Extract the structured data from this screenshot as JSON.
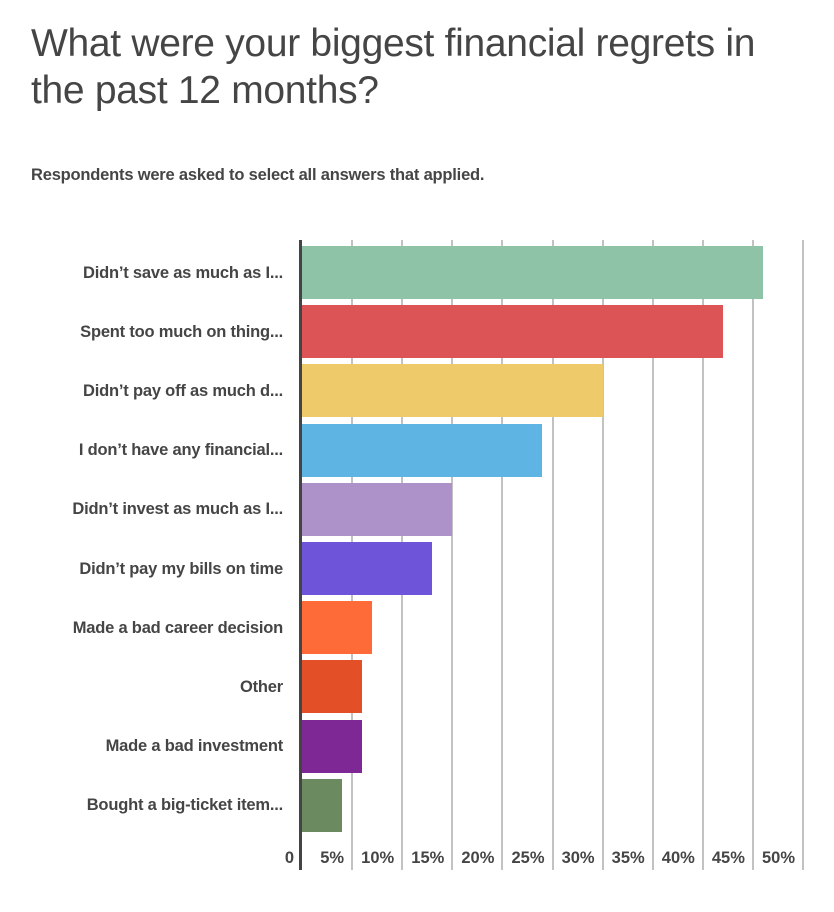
{
  "title": "What were your biggest financial regrets in the past 12 months?",
  "subtitle": "Respondents were asked to select all answers that applied.",
  "x_ticks": [
    "0",
    "5%",
    "10%",
    "15%",
    "20%",
    "25%",
    "30%",
    "35%",
    "40%",
    "45%",
    "50%"
  ],
  "categories": [
    {
      "label": "Didn’t save as much as I...",
      "value": 46,
      "color": "#8FC3A8"
    },
    {
      "label": "Spent too much on thing...",
      "value": 42,
      "color": "#DD5456"
    },
    {
      "label": "Didn’t pay off as much d...",
      "value": 30,
      "color": "#EFCA6A"
    },
    {
      "label": "I don’t have any financial...",
      "value": 24,
      "color": "#5EB5E3"
    },
    {
      "label": "Didn’t invest as much as I...",
      "value": 15,
      "color": "#AC92C8"
    },
    {
      "label": "Didn’t pay my bills on time",
      "value": 13,
      "color": "#6E54D8"
    },
    {
      "label": "Made a bad career decision",
      "value": 7,
      "color": "#FF6B38"
    },
    {
      "label": "Other",
      "value": 6,
      "color": "#E34F26"
    },
    {
      "label": "Made a bad investment",
      "value": 6,
      "color": "#7E2896"
    },
    {
      "label": "Bought a big-ticket item...",
      "value": 4,
      "color": "#6B8A5F"
    }
  ],
  "chart_data": {
    "type": "bar",
    "orientation": "horizontal",
    "title": "What were your biggest financial regrets in the past 12 months?",
    "subtitle": "Respondents were asked to select all answers that applied.",
    "categories": [
      "Didn’t save as much as I...",
      "Spent too much on thing...",
      "Didn’t pay off as much d...",
      "I don’t have any financial...",
      "Didn’t invest as much as I...",
      "Didn’t pay my bills on time",
      "Made a bad career decision",
      "Other",
      "Made a bad investment",
      "Bought a big-ticket item..."
    ],
    "values": [
      46,
      42,
      30,
      24,
      15,
      13,
      7,
      6,
      6,
      4
    ],
    "colors": [
      "#8FC3A8",
      "#DD5456",
      "#EFCA6A",
      "#5EB5E3",
      "#AC92C8",
      "#6E54D8",
      "#FF6B38",
      "#E34F26",
      "#7E2896",
      "#6B8A5F"
    ],
    "xlabel": "",
    "ylabel": "",
    "xlim": [
      0,
      50
    ],
    "x_tick_labels": [
      "0",
      "5%",
      "10%",
      "15%",
      "20%",
      "25%",
      "30%",
      "35%",
      "40%",
      "45%",
      "50%"
    ],
    "value_unit": "%",
    "grid": "vertical",
    "legend": "none"
  }
}
